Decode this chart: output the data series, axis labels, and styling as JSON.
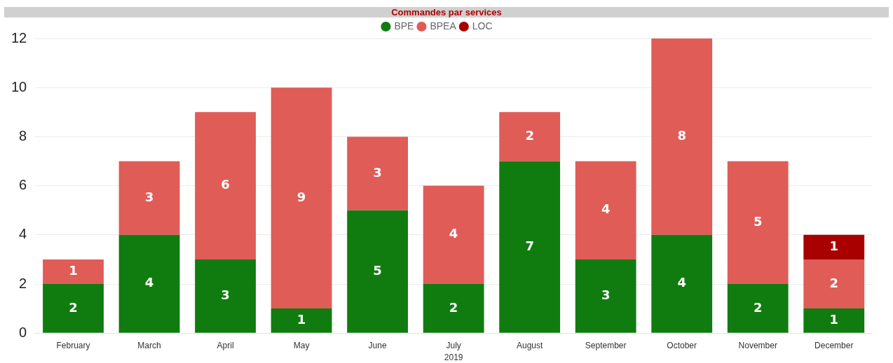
{
  "chart_data": {
    "type": "bar",
    "title": "Commandes par services",
    "xlabel": "2019",
    "categories": [
      "February",
      "March",
      "April",
      "May",
      "June",
      "July",
      "August",
      "September",
      "October",
      "November",
      "December"
    ],
    "series": [
      {
        "name": "BPE",
        "color": "#107c10",
        "values": [
          2,
          4,
          3,
          1,
          5,
          2,
          7,
          3,
          4,
          2,
          1
        ]
      },
      {
        "name": "BPEA",
        "color": "#e05c57",
        "values": [
          1,
          3,
          6,
          9,
          3,
          4,
          2,
          4,
          8,
          5,
          2
        ]
      },
      {
        "name": "LOC",
        "color": "#a80000",
        "values": [
          null,
          null,
          null,
          null,
          null,
          null,
          null,
          null,
          null,
          null,
          1
        ]
      }
    ],
    "stacked": true,
    "ylim": [
      0,
      12
    ],
    "yticks": [
      0,
      2,
      4,
      6,
      8,
      10,
      12
    ],
    "grid": "y",
    "legend": "top",
    "data_labels": true
  }
}
